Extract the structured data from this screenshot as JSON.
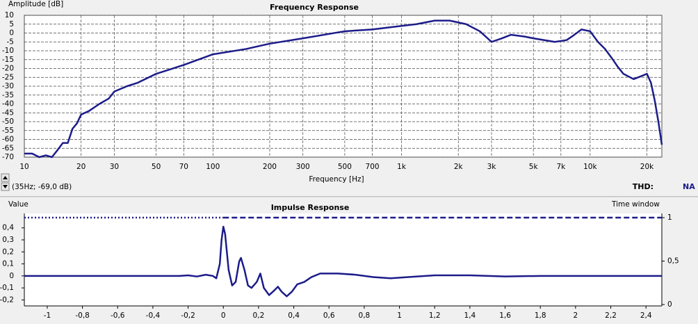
{
  "chart_data": [
    {
      "type": "line",
      "title": "Frequency Response",
      "y_label": "Amplitude [dB]",
      "x_label": "Frequency [Hz]",
      "xscale": "log",
      "xlim": [
        10,
        24000
      ],
      "ylim": [
        -70,
        10
      ],
      "grid": true,
      "xticks": [
        10,
        20,
        30,
        50,
        70,
        100,
        200,
        300,
        500,
        700,
        {
          "value": 1000,
          "label": "1k"
        },
        {
          "value": 2000,
          "label": "2k"
        },
        {
          "value": 3000,
          "label": "3k"
        },
        {
          "value": 5000,
          "label": "5k"
        },
        {
          "value": 7000,
          "label": "7k"
        },
        {
          "value": 10000,
          "label": "10k"
        },
        {
          "value": 20000,
          "label": "20k"
        }
      ],
      "yticks": [
        10,
        5,
        0,
        -5,
        -10,
        -15,
        -20,
        -25,
        -30,
        -35,
        -40,
        -45,
        -50,
        -55,
        -60,
        -65,
        -70
      ],
      "series": [
        {
          "color": "#1c1c8a",
          "x": [
            10,
            11,
            12,
            13,
            14,
            15,
            16,
            17,
            18,
            19,
            20,
            22,
            25,
            28,
            30,
            35,
            40,
            50,
            70,
            100,
            150,
            200,
            300,
            500,
            700,
            1000,
            1200,
            1500,
            1800,
            2200,
            2600,
            3000,
            3400,
            3800,
            4500,
            5000,
            6500,
            7500,
            8000,
            9000,
            10000,
            11000,
            12000,
            13000,
            14000,
            15000,
            17000,
            19000,
            20000,
            21000,
            22000,
            23000,
            24000
          ],
          "values": [
            -68,
            -68,
            -70,
            -69,
            -70,
            -66,
            -62,
            -62,
            -54,
            -51,
            -46,
            -44,
            -40,
            -37,
            -33,
            -30,
            -28,
            -23,
            -18,
            -12,
            -9,
            -6,
            -3,
            1,
            2,
            4,
            5,
            7,
            7,
            5,
            1,
            -5,
            -3,
            -1,
            -2,
            -3,
            -5,
            -4,
            -2,
            2,
            1,
            -5,
            -9,
            -14,
            -19,
            -23,
            -26,
            -24,
            -23,
            -28,
            -38,
            -50,
            -63
          ]
        }
      ]
    },
    {
      "type": "line",
      "title": "Impulse Response",
      "y_label": "Value",
      "y2_label": "Time window",
      "xlim": [
        -1.13,
        2.49
      ],
      "ylim": [
        -0.25,
        0.52
      ],
      "y2lim": [
        -0.016,
        1.048
      ],
      "xticks": [
        -1,
        {
          "value": -0.8,
          "label": "-0,8"
        },
        {
          "value": -0.6,
          "label": "-0,6"
        },
        {
          "value": -0.4,
          "label": "-0,4"
        },
        {
          "value": -0.2,
          "label": "-0,2"
        },
        0,
        {
          "value": 0.2,
          "label": "0,2"
        },
        {
          "value": 0.4,
          "label": "0,4"
        },
        {
          "value": 0.6,
          "label": "0,6"
        },
        {
          "value": 0.8,
          "label": "0,8"
        },
        1,
        {
          "value": 1.2,
          "label": "1,2"
        },
        {
          "value": 1.4,
          "label": "1,4"
        },
        {
          "value": 1.6,
          "label": "1,6"
        },
        {
          "value": 1.8,
          "label": "1,8"
        },
        2,
        {
          "value": 2.2,
          "label": "2,2"
        },
        {
          "value": 2.4,
          "label": "2,4"
        }
      ],
      "yticks": [
        {
          "value": 0.4,
          "label": "0,4"
        },
        {
          "value": 0.3,
          "label": "0,3"
        },
        {
          "value": 0.2,
          "label": "0,2"
        },
        {
          "value": 0.1,
          "label": "0,1"
        },
        0,
        {
          "value": -0.1,
          "label": "-0,1"
        },
        {
          "value": -0.2,
          "label": "-0,2"
        }
      ],
      "y2ticks": [
        0,
        {
          "value": 0.5,
          "label": "0,5"
        },
        1
      ],
      "series": [
        {
          "color": "#1c1c8a",
          "x": [
            -1.13,
            -0.25,
            -0.2,
            -0.15,
            -0.1,
            -0.06,
            -0.04,
            -0.02,
            -0.01,
            0,
            0.01,
            0.03,
            0.05,
            0.07,
            0.09,
            0.1,
            0.12,
            0.14,
            0.16,
            0.19,
            0.21,
            0.23,
            0.26,
            0.29,
            0.31,
            0.33,
            0.36,
            0.39,
            0.42,
            0.46,
            0.5,
            0.55,
            0.65,
            0.75,
            0.85,
            0.95,
            1.05,
            1.2,
            1.4,
            1.6,
            1.8,
            2.49
          ],
          "values": [
            0,
            0,
            0.005,
            -0.005,
            0.01,
            0,
            -0.02,
            0.1,
            0.3,
            0.41,
            0.35,
            0.05,
            -0.08,
            -0.05,
            0.12,
            0.15,
            0.05,
            -0.08,
            -0.1,
            -0.05,
            0.02,
            -0.1,
            -0.16,
            -0.12,
            -0.09,
            -0.13,
            -0.17,
            -0.13,
            -0.07,
            -0.05,
            -0.01,
            0.02,
            0.02,
            0.01,
            -0.01,
            -0.02,
            -0.01,
            0.005,
            0.005,
            -0.005,
            0,
            0
          ]
        },
        {
          "color": "#1c1c8a",
          "axis": "y2",
          "dash": "2,3",
          "x": [
            -1.13,
            0
          ],
          "values": [
            1,
            1
          ]
        },
        {
          "color": "#1c1c8a",
          "axis": "y2",
          "dash": "8,4",
          "x": [
            0,
            2.49
          ],
          "values": [
            1,
            1
          ]
        }
      ]
    }
  ],
  "status": {
    "cursor": "(35Hz; -69,0 dB)",
    "thd_label": "THD:",
    "thd_value": "NA"
  }
}
